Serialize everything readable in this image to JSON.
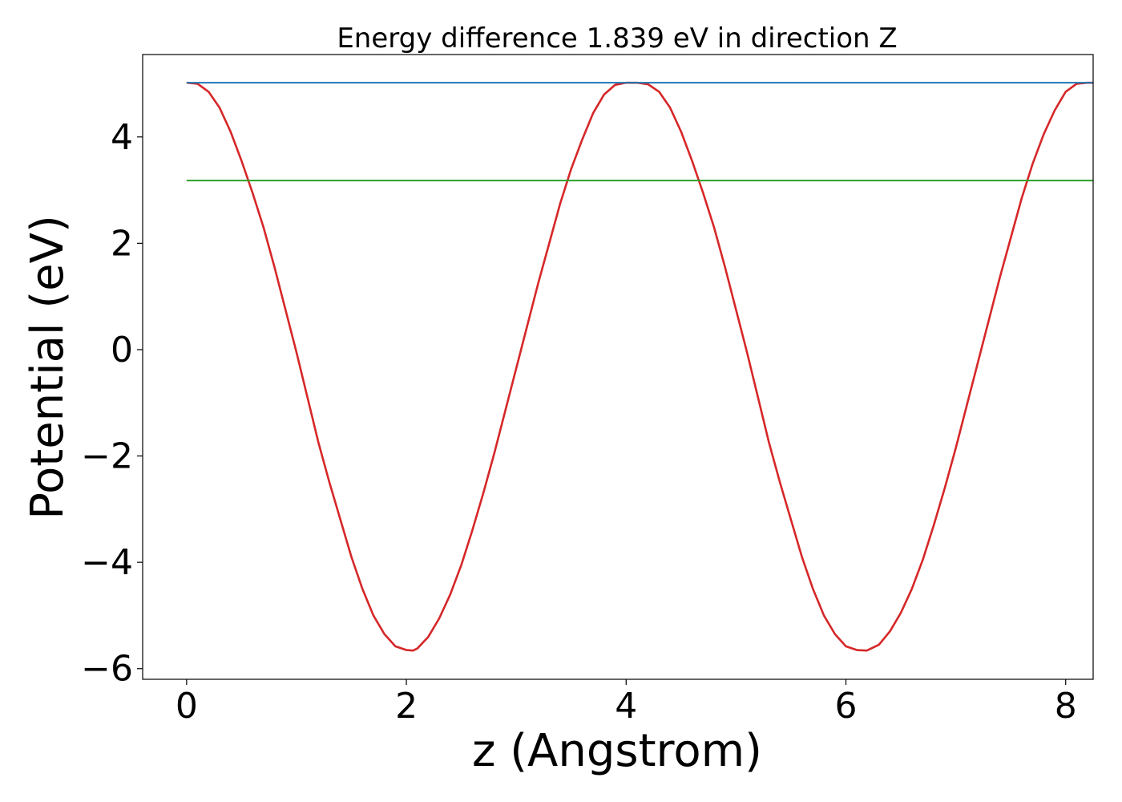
{
  "chart_data": {
    "type": "line",
    "title": "Energy difference 1.839 eV in direction Z",
    "xlabel": "z (Angstrom)",
    "ylabel": "Potential (eV)",
    "xlim": [
      -0.4,
      8.25
    ],
    "ylim": [
      -6.2,
      5.55
    ],
    "xticks": [
      0,
      2,
      4,
      6,
      8
    ],
    "yticks": [
      -6,
      -4,
      -2,
      0,
      2,
      4
    ],
    "xtick_labels": [
      "0",
      "2",
      "4",
      "6",
      "8"
    ],
    "ytick_labels": [
      "−6",
      "−4",
      "−2",
      "0",
      "2",
      "4"
    ],
    "grid": false,
    "legend": "none",
    "series": [
      {
        "color": "#d62728",
        "style": "curve",
        "x": [
          0.0,
          0.1,
          0.2,
          0.3,
          0.4,
          0.5,
          0.6,
          0.7,
          0.8,
          0.9,
          1.0,
          1.1,
          1.2,
          1.3,
          1.4,
          1.5,
          1.6,
          1.7,
          1.8,
          1.9,
          2.0,
          2.06,
          2.1,
          2.2,
          2.3,
          2.4,
          2.5,
          2.6,
          2.7,
          2.8,
          2.9,
          3.0,
          3.1,
          3.2,
          3.3,
          3.4,
          3.5,
          3.6,
          3.7,
          3.8,
          3.9,
          4.0,
          4.1,
          4.2,
          4.3,
          4.4,
          4.5,
          4.6,
          4.7,
          4.8,
          4.9,
          5.0,
          5.1,
          5.2,
          5.3,
          5.4,
          5.5,
          5.6,
          5.7,
          5.8,
          5.9,
          6.0,
          6.1,
          6.19,
          6.3,
          6.4,
          6.5,
          6.6,
          6.7,
          6.8,
          6.9,
          7.0,
          7.1,
          7.2,
          7.3,
          7.4,
          7.5,
          7.6,
          7.7,
          7.8,
          7.9,
          8.0,
          8.1,
          8.2,
          8.25
        ],
        "y": [
          5.02,
          5.0,
          4.85,
          4.55,
          4.1,
          3.55,
          2.95,
          2.3,
          1.55,
          0.75,
          -0.05,
          -0.9,
          -1.75,
          -2.5,
          -3.2,
          -3.9,
          -4.5,
          -5.0,
          -5.35,
          -5.58,
          -5.65,
          -5.66,
          -5.62,
          -5.4,
          -5.05,
          -4.6,
          -4.05,
          -3.4,
          -2.7,
          -1.95,
          -1.15,
          -0.35,
          0.45,
          1.25,
          2.0,
          2.75,
          3.4,
          3.95,
          4.45,
          4.8,
          4.98,
          5.02,
          5.02,
          4.99,
          4.85,
          4.55,
          4.1,
          3.55,
          2.95,
          2.3,
          1.55,
          0.75,
          -0.05,
          -0.9,
          -1.75,
          -2.5,
          -3.2,
          -3.9,
          -4.5,
          -5.0,
          -5.35,
          -5.58,
          -5.65,
          -5.66,
          -5.55,
          -5.3,
          -4.95,
          -4.5,
          -3.95,
          -3.3,
          -2.6,
          -1.85,
          -1.05,
          -0.25,
          0.55,
          1.35,
          2.1,
          2.85,
          3.5,
          4.05,
          4.5,
          4.85,
          5.0,
          5.02,
          5.02
        ]
      },
      {
        "color": "#1f77b4",
        "style": "flat",
        "x": [
          0.0,
          8.25
        ],
        "y": [
          5.02,
          5.02
        ]
      },
      {
        "color": "#2ca02c",
        "style": "flat",
        "x": [
          0.0,
          8.25
        ],
        "y": [
          3.18,
          3.18
        ]
      }
    ]
  }
}
